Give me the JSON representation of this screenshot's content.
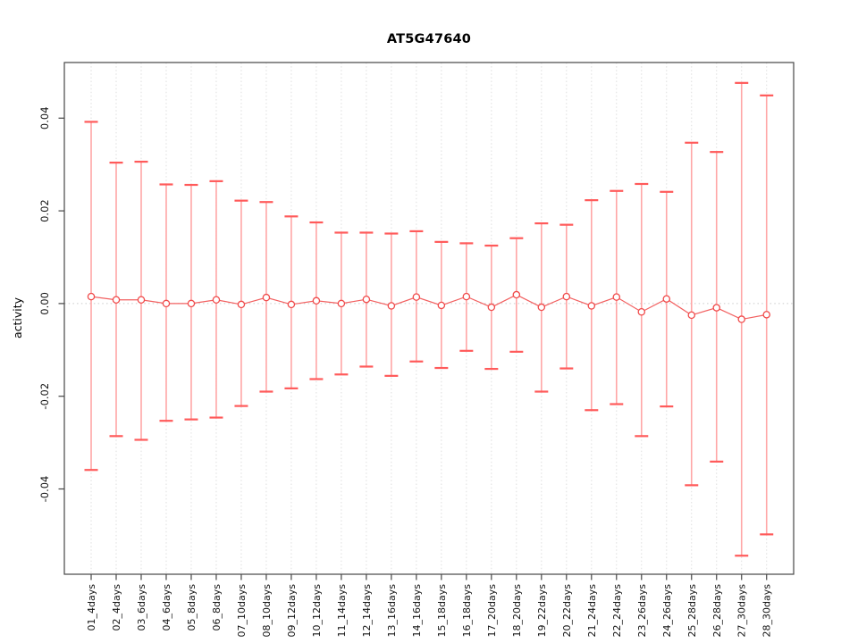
{
  "chart_data": {
    "type": "line",
    "subtype": "points-with-error-bars",
    "title": "AT5G47640",
    "xlabel": "",
    "ylabel": "activity",
    "ylim": [
      -0.0584,
      0.052
    ],
    "grid": "vertical-dashed-per-category, dotted-zero-line",
    "legend": "none",
    "categories": [
      "01_4days",
      "02_4days",
      "03_6days",
      "04_6days",
      "05_8days",
      "06_8days",
      "07_10days",
      "08_10days",
      "09_12days",
      "10_12days",
      "11_14days",
      "12_14days",
      "13_16days",
      "14_16days",
      "15_18days",
      "16_18days",
      "17_20days",
      "18_20days",
      "19_22days",
      "20_22days",
      "21_24days",
      "22_24days",
      "23_26days",
      "24_26days",
      "25_28days",
      "26_28days",
      "27_30days",
      "28_30days"
    ],
    "series": [
      {
        "name": "activity",
        "values": [
          0.0015,
          0.0008,
          0.0008,
          0.0,
          0.0,
          0.0008,
          -0.0002,
          0.0013,
          -0.0002,
          0.0006,
          0.0,
          0.0009,
          -0.0005,
          0.0014,
          -0.0004,
          0.0015,
          -0.0008,
          0.0019,
          -0.0008,
          0.0015,
          -0.0005,
          0.0014,
          -0.0018,
          0.001,
          -0.0025,
          -0.0009,
          -0.0034,
          -0.0024
        ],
        "upper": [
          0.0392,
          0.0304,
          0.0306,
          0.0257,
          0.0256,
          0.0264,
          0.0222,
          0.0219,
          0.0188,
          0.0175,
          0.0153,
          0.0153,
          0.0151,
          0.0156,
          0.0133,
          0.013,
          0.0125,
          0.0141,
          0.0173,
          0.017,
          0.0223,
          0.0243,
          0.0258,
          0.0241,
          0.0347,
          0.0327,
          0.0476,
          0.0449
        ],
        "lower": [
          -0.0359,
          -0.0286,
          -0.0294,
          -0.0253,
          -0.025,
          -0.0246,
          -0.0221,
          -0.019,
          -0.0183,
          -0.0163,
          -0.0153,
          -0.0136,
          -0.0156,
          -0.0125,
          -0.0139,
          -0.0102,
          -0.0141,
          -0.0104,
          -0.019,
          -0.014,
          -0.023,
          -0.0217,
          -0.0286,
          -0.0222,
          -0.0392,
          -0.0341,
          -0.0544,
          -0.0498
        ]
      }
    ],
    "y_ticks": [
      {
        "value": -0.04,
        "label": "-0.04"
      },
      {
        "value": -0.02,
        "label": "-0.02"
      },
      {
        "value": 0.0,
        "label": "0.00"
      },
      {
        "value": 0.02,
        "label": "0.02"
      },
      {
        "value": 0.04,
        "label": "0.04"
      }
    ],
    "colors": {
      "error_bar_line": "#ffa6a6",
      "error_bar_cap": "#ff5a5a",
      "point_stroke": "#f04b4b",
      "point_fill": "#ffffff",
      "connect_line": "#f26060",
      "gridline": "#dedede",
      "zero_line": "#c9c9c9",
      "axis": "#454545",
      "tick_label": "#141414"
    }
  }
}
